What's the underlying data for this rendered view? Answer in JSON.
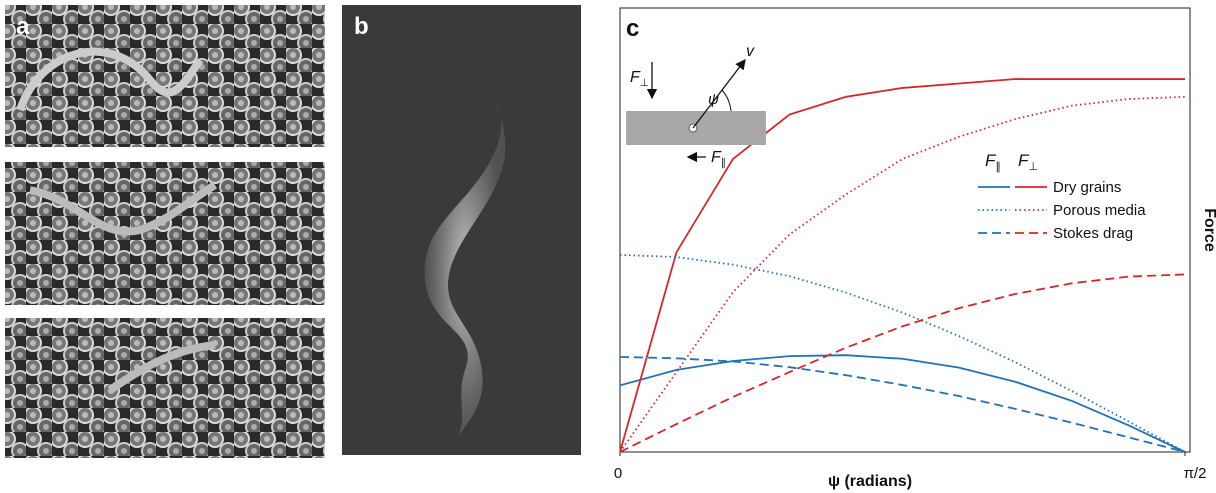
{
  "panel_labels": [
    "a",
    "b",
    "c"
  ],
  "chart_data": {
    "type": "line",
    "x_label": "ψ (radians)",
    "y_label": "Force",
    "x": [
      0,
      0.1571,
      0.3142,
      0.4712,
      0.6283,
      0.7854,
      0.9425,
      1.0996,
      1.2566,
      1.4137,
      1.5708
    ],
    "xlim": [
      0,
      1.5708
    ],
    "xticks": [
      0,
      {
        "value": 1.5708,
        "label": "π/2"
      }
    ],
    "ylim": [
      0,
      1
    ],
    "component_labels": [
      {
        "symbol": "F",
        "sub": "∥"
      },
      {
        "symbol": "F",
        "sub": "⊥"
      }
    ],
    "series": [
      {
        "name": "Dry grains",
        "style": "solid",
        "components": [
          {
            "color": "#1f73b7",
            "values": [
              0.15,
              0.185,
              0.205,
              0.216,
              0.218,
              0.21,
              0.19,
              0.158,
              0.115,
              0.06,
              0
            ]
          },
          {
            "color": "#d62728",
            "values": [
              0,
              0.45,
              0.66,
              0.76,
              0.8,
              0.82,
              0.83,
              0.84,
              0.84,
              0.84,
              0.84
            ]
          }
        ]
      },
      {
        "name": "Porous media",
        "style": "dotted",
        "components": [
          {
            "color": "#1f73b7",
            "values": [
              0.444,
              0.439,
              0.422,
              0.396,
              0.359,
              0.314,
              0.261,
              0.202,
              0.137,
              0.069,
              0
            ]
          },
          {
            "color": "#d62728",
            "values": [
              0,
              0.18,
              0.36,
              0.49,
              0.58,
              0.66,
              0.71,
              0.75,
              0.78,
              0.795,
              0.8
            ]
          }
        ]
      },
      {
        "name": "Stokes drag",
        "style": "dashed",
        "components": [
          {
            "color": "#1f73b7",
            "values": [
              0.214,
              0.211,
              0.204,
              0.191,
              0.173,
              0.151,
              0.126,
              0.097,
              0.066,
              0.033,
              0
            ]
          },
          {
            "color": "#d62728",
            "values": [
              0,
              0.063,
              0.124,
              0.18,
              0.235,
              0.283,
              0.324,
              0.356,
              0.38,
              0.395,
              0.4
            ]
          }
        ]
      }
    ],
    "inset": {
      "force_perp": {
        "symbol": "F",
        "sub": "⊥"
      },
      "velocity": "v",
      "angle": "ψ",
      "force_par": {
        "symbol": "F",
        "sub": "∥"
      }
    }
  }
}
